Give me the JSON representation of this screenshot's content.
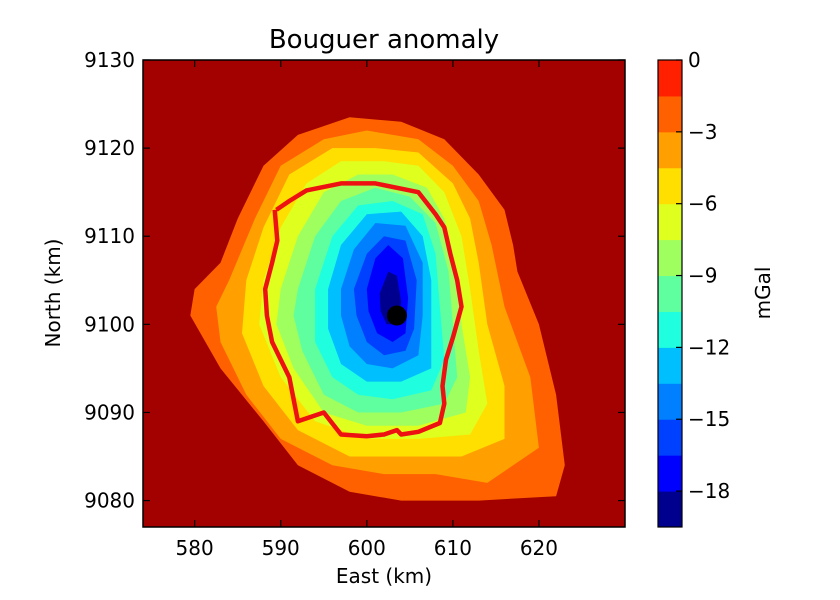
{
  "chart_data": {
    "type": "heatmap",
    "subtype": "filled-contour",
    "title": "Bouguer anomaly",
    "xlabel": "East (km)",
    "ylabel": "North (km)",
    "xlim": [
      574,
      630
    ],
    "ylim": [
      9077,
      9130
    ],
    "xticks": [
      580,
      590,
      600,
      610,
      620
    ],
    "yticks": [
      9080,
      9090,
      9100,
      9110,
      9120,
      9130
    ],
    "colormap": "jet",
    "grid": false,
    "colorbar": {
      "label": "mGal",
      "range": [
        -19.5,
        0
      ],
      "levels": [
        -19.5,
        -18,
        -16.5,
        -15,
        -13.5,
        -12,
        -10.5,
        -9,
        -7.5,
        -6,
        -4.5,
        -3,
        -1.5,
        0
      ],
      "ticks": [
        0,
        -3,
        -6,
        -9,
        -12,
        -15,
        -18
      ],
      "tick_labels": [
        "0",
        "−3",
        "−6",
        "−9",
        "−12",
        "−15",
        "−18"
      ],
      "band_colors": [
        "#00008f",
        "#0000ff",
        "#0040ff",
        "#0080ff",
        "#00bfff",
        "#1fffdf",
        "#5fff9f",
        "#9fff5f",
        "#dfff1f",
        "#ffdf00",
        "#ffa000",
        "#ff6000",
        "#ff2000",
        "#a30000"
      ]
    },
    "anomaly_center": [
      603.5,
      9101
    ],
    "contours": [
      {
        "level": -1.5,
        "points": [
          [
            583,
            9107
          ],
          [
            585,
            9112
          ],
          [
            588,
            9118
          ],
          [
            592,
            9121.5
          ],
          [
            598,
            9123.5
          ],
          [
            604,
            9123
          ],
          [
            609,
            9121
          ],
          [
            613,
            9117
          ],
          [
            616,
            9113
          ],
          [
            617,
            9109
          ],
          [
            617.5,
            9106
          ],
          [
            620,
            9100
          ],
          [
            622,
            9092
          ],
          [
            623,
            9084
          ],
          [
            622,
            9080.5
          ],
          [
            613,
            9080
          ],
          [
            604,
            9080
          ],
          [
            598,
            9081
          ],
          [
            592,
            9084
          ],
          [
            588,
            9089
          ],
          [
            583,
            9095
          ],
          [
            579.5,
            9101
          ],
          [
            580,
            9104
          ]
        ]
      },
      {
        "level": -3,
        "points": [
          [
            584,
            9105
          ],
          [
            587,
            9112
          ],
          [
            590,
            9118
          ],
          [
            595,
            9121
          ],
          [
            600,
            9122
          ],
          [
            606,
            9121
          ],
          [
            610,
            9118
          ],
          [
            613,
            9114
          ],
          [
            614.5,
            9109
          ],
          [
            616,
            9102
          ],
          [
            619,
            9094
          ],
          [
            620,
            9086
          ],
          [
            614,
            9082
          ],
          [
            608,
            9083
          ],
          [
            602,
            9083
          ],
          [
            596,
            9084
          ],
          [
            590,
            9087
          ],
          [
            586,
            9092
          ],
          [
            583,
            9098
          ],
          [
            582.5,
            9102
          ]
        ]
      },
      {
        "level": -4.5,
        "points": [
          [
            586,
            9105
          ],
          [
            588,
            9111
          ],
          [
            591,
            9117
          ],
          [
            596,
            9120
          ],
          [
            601,
            9120
          ],
          [
            606,
            9119.5
          ],
          [
            610,
            9116
          ],
          [
            612,
            9112
          ],
          [
            613,
            9107
          ],
          [
            614,
            9100
          ],
          [
            616,
            9093
          ],
          [
            616,
            9087
          ],
          [
            611,
            9085
          ],
          [
            605,
            9085
          ],
          [
            598,
            9085
          ],
          [
            592,
            9088
          ],
          [
            588,
            9093
          ],
          [
            585.5,
            9099
          ]
        ]
      },
      {
        "level": -6,
        "points": [
          [
            588,
            9105
          ],
          [
            590,
            9111
          ],
          [
            593,
            9116
          ],
          [
            597,
            9118.5
          ],
          [
            602,
            9118.5
          ],
          [
            606,
            9118
          ],
          [
            609,
            9115
          ],
          [
            611,
            9110
          ],
          [
            612,
            9104
          ],
          [
            613,
            9097
          ],
          [
            614,
            9091
          ],
          [
            612,
            9087.5
          ],
          [
            606,
            9087
          ],
          [
            600,
            9087
          ],
          [
            594,
            9089
          ],
          [
            590,
            9094
          ],
          [
            587.5,
            9100
          ]
        ]
      },
      {
        "level": -7.5,
        "points": [
          [
            590,
            9104
          ],
          [
            592,
            9110
          ],
          [
            595,
            9115
          ],
          [
            599,
            9117
          ],
          [
            603,
            9117
          ],
          [
            607,
            9115.5
          ],
          [
            609,
            9112
          ],
          [
            610.5,
            9106
          ],
          [
            611,
            9100
          ],
          [
            612,
            9094
          ],
          [
            611.5,
            9090
          ],
          [
            606,
            9088.5
          ],
          [
            600,
            9088.5
          ],
          [
            595,
            9090
          ],
          [
            591.5,
            9095
          ],
          [
            589.5,
            9100
          ]
        ]
      },
      {
        "level": -9,
        "points": [
          [
            592,
            9104
          ],
          [
            594,
            9110
          ],
          [
            597,
            9114
          ],
          [
            601,
            9115.5
          ],
          [
            605,
            9114.5
          ],
          [
            608,
            9111.5
          ],
          [
            609.5,
            9106
          ],
          [
            610,
            9100
          ],
          [
            610.5,
            9094
          ],
          [
            609,
            9091
          ],
          [
            604,
            9090
          ],
          [
            599,
            9090
          ],
          [
            595,
            9092
          ],
          [
            592.5,
            9097
          ],
          [
            591.5,
            9101
          ]
        ]
      },
      {
        "level": -10.5,
        "points": [
          [
            594,
            9104
          ],
          [
            596,
            9110
          ],
          [
            599,
            9113.5
          ],
          [
            603,
            9114
          ],
          [
            606.5,
            9112.5
          ],
          [
            608,
            9108
          ],
          [
            608.5,
            9102
          ],
          [
            609,
            9096
          ],
          [
            607.5,
            9092.5
          ],
          [
            603,
            9091.5
          ],
          [
            599,
            9092
          ],
          [
            596,
            9094
          ],
          [
            594,
            9098
          ]
        ]
      },
      {
        "level": -12,
        "points": [
          [
            595.5,
            9104
          ],
          [
            597,
            9109
          ],
          [
            600,
            9112.5
          ],
          [
            604,
            9112.8
          ],
          [
            606.5,
            9110
          ],
          [
            607.5,
            9105
          ],
          [
            607.5,
            9099
          ],
          [
            607.5,
            9095
          ],
          [
            604,
            9093.5
          ],
          [
            600,
            9093.5
          ],
          [
            597,
            9095.5
          ],
          [
            595.5,
            9099.5
          ]
        ]
      },
      {
        "level": -13.5,
        "points": [
          [
            597,
            9104
          ],
          [
            598.5,
            9108.5
          ],
          [
            601,
            9111.5
          ],
          [
            604.5,
            9111.2
          ],
          [
            606.5,
            9107
          ],
          [
            606.5,
            9101
          ],
          [
            606,
            9096.5
          ],
          [
            603,
            9095
          ],
          [
            600,
            9095.5
          ],
          [
            598,
            9097.5
          ],
          [
            597,
            9101
          ]
        ]
      },
      {
        "level": -15,
        "points": [
          [
            598.5,
            9104
          ],
          [
            600,
            9108
          ],
          [
            602,
            9110
          ],
          [
            604.5,
            9109.5
          ],
          [
            605.8,
            9105
          ],
          [
            605.5,
            9099.5
          ],
          [
            604.5,
            9097
          ],
          [
            602,
            9096.5
          ],
          [
            600,
            9098
          ],
          [
            598.8,
            9101
          ]
        ]
      },
      {
        "level": -16.5,
        "points": [
          [
            600,
            9104
          ],
          [
            601,
            9107.5
          ],
          [
            602.5,
            9109
          ],
          [
            604.2,
            9107.5
          ],
          [
            604.8,
            9103
          ],
          [
            604.5,
            9099
          ],
          [
            603,
            9098
          ],
          [
            601.2,
            9099
          ],
          [
            600.2,
            9101.5
          ]
        ]
      },
      {
        "level": -18,
        "points": [
          [
            601.5,
            9103.5
          ],
          [
            602.5,
            9106
          ],
          [
            603.5,
            9105.5
          ],
          [
            604,
            9102.5
          ],
          [
            603.5,
            9100
          ],
          [
            602.3,
            9100
          ],
          [
            601.6,
            9101.5
          ]
        ]
      }
    ],
    "outline": [
      [
        589.5,
        9113
      ],
      [
        591,
        9114
      ],
      [
        593,
        9115.2
      ],
      [
        597,
        9116
      ],
      [
        601,
        9116
      ],
      [
        606,
        9115
      ],
      [
        608,
        9112.5
      ],
      [
        609,
        9111
      ],
      [
        609.7,
        9108
      ],
      [
        610.5,
        9105
      ],
      [
        611,
        9102
      ],
      [
        610,
        9098.5
      ],
      [
        609.2,
        9096
      ],
      [
        608.8,
        9093
      ],
      [
        609,
        9091
      ],
      [
        608.5,
        9088.8
      ],
      [
        606,
        9087.8
      ],
      [
        604,
        9087.5
      ],
      [
        603.5,
        9088
      ],
      [
        602,
        9087.5
      ],
      [
        600,
        9087.3
      ],
      [
        597,
        9087.5
      ],
      [
        595,
        9090
      ],
      [
        592,
        9089
      ],
      [
        591,
        9094
      ],
      [
        589,
        9098
      ],
      [
        588.4,
        9101
      ],
      [
        588.2,
        9104
      ],
      [
        589,
        9107
      ],
      [
        589.6,
        9109.5
      ],
      [
        589.3,
        9113
      ]
    ]
  }
}
